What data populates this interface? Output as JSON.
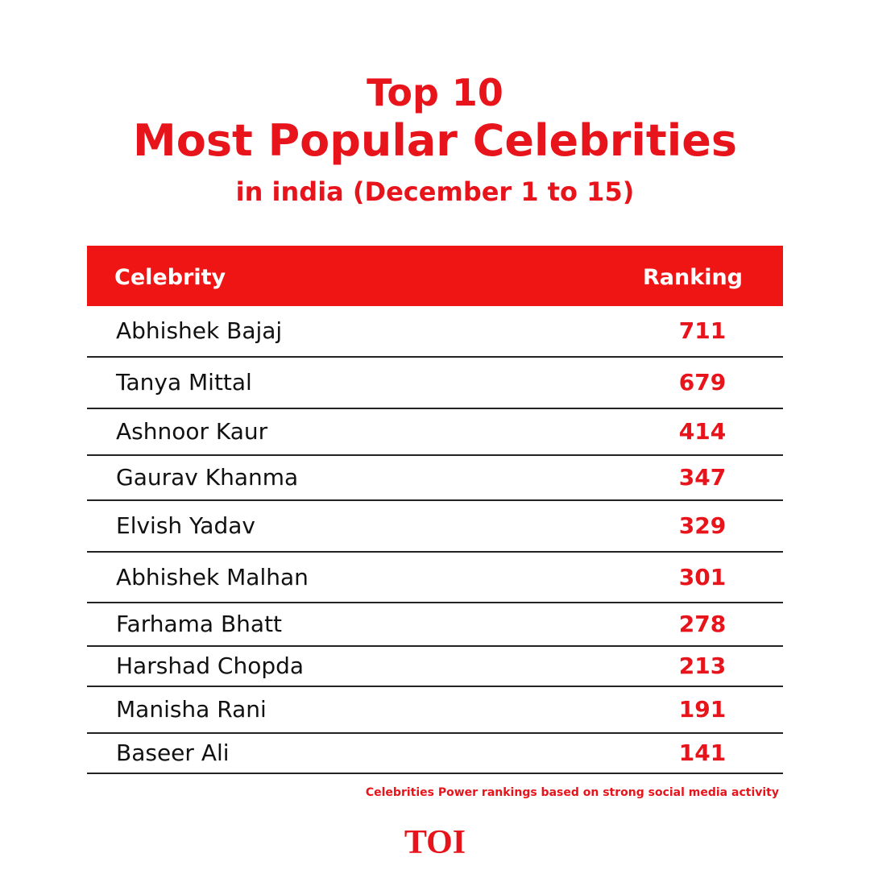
{
  "header": {
    "title": [
      "Top 10",
      "Most Popular Celebrities",
      "in india (December 1 to 15)"
    ]
  },
  "table": {
    "columns": [
      "Celebrity",
      "Ranking"
    ],
    "rows": [
      [
        "Abhishek Bajaj",
        711
      ],
      [
        "Tanya Mittal",
        679
      ],
      [
        "Ashnoor Kaur",
        414
      ],
      [
        "Gaurav Khanma",
        347
      ],
      [
        "Elvish Yadav",
        329
      ],
      [
        "Abhishek Malhan",
        301
      ],
      [
        "Farhama Bhatt",
        278
      ],
      [
        "Harshad Chopda",
        213
      ],
      [
        "Manisha Rani",
        191
      ],
      [
        "Baseer Ali",
        141
      ]
    ]
  },
  "footnote": "Celebrities Power rankings based on strong social media activity",
  "logo": "TOI"
}
